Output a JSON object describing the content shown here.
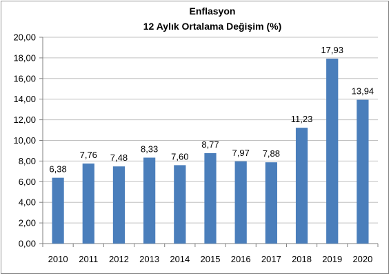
{
  "chart_data": {
    "type": "bar",
    "title": "Enflasyon",
    "subtitle": "12 Aylık Ortalama Değişim (%)",
    "xlabel": "",
    "ylabel": "",
    "categories": [
      "2010",
      "2011",
      "2012",
      "2013",
      "2014",
      "2015",
      "2016",
      "2017",
      "2018",
      "2019",
      "2020"
    ],
    "values": [
      6.38,
      7.76,
      7.48,
      8.33,
      7.6,
      8.77,
      7.97,
      7.88,
      11.23,
      17.93,
      13.94
    ],
    "value_labels": [
      "6,38",
      "7,76",
      "7,48",
      "8,33",
      "7,60",
      "8,77",
      "7,97",
      "7,88",
      "11,23",
      "17,93",
      "13,94"
    ],
    "ylim": [
      0,
      20
    ],
    "y_ticks": [
      "0,00",
      "2,00",
      "4,00",
      "6,00",
      "8,00",
      "10,00",
      "12,00",
      "14,00",
      "16,00",
      "18,00",
      "20,00"
    ],
    "grid": true,
    "legend": "none",
    "bar_color": "#4a7ebb",
    "grid_color": "#c0c0c0"
  }
}
